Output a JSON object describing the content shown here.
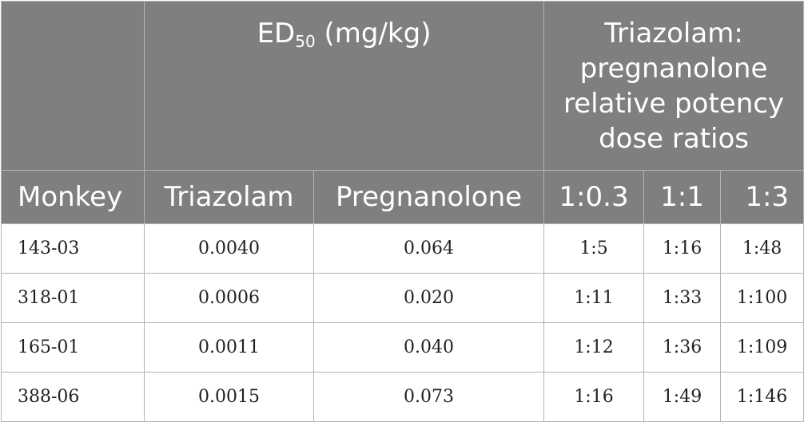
{
  "header": {
    "ed50_main": "ED",
    "ed50_sub": "50",
    "ed50_unit": " (mg/kg)",
    "ratio_group": [
      "Triazolam:",
      "pregnanolone",
      "relative potency",
      "dose ratios"
    ],
    "columns": [
      "Monkey",
      "Triazolam",
      "Pregnanolone",
      "1:0.3",
      "1:1",
      "1:3"
    ]
  },
  "rows": [
    [
      "143-03",
      "0.0040",
      "0.064",
      "1:5",
      "1:16",
      "1:48"
    ],
    [
      "318-01",
      "0.0006",
      "0.020",
      "1:11",
      "1:33",
      "1:100"
    ],
    [
      "165-01",
      "0.0011",
      "0.040",
      "1:12",
      "1:36",
      "1:109"
    ],
    [
      "388-06",
      "0.0015",
      "0.073",
      "1:16",
      "1:49",
      "1:146"
    ]
  ]
}
